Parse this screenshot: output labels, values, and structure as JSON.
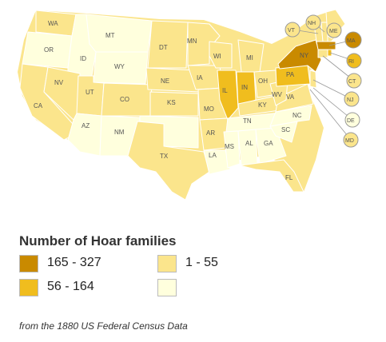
{
  "colors": {
    "top": "#c98a00",
    "high": "#f0bd1e",
    "mid": "#fbe58c",
    "low": "#ffffdd",
    "label": "#555555"
  },
  "map": {
    "state_labels": [
      "WA",
      "OR",
      "MT",
      "ID",
      "WY",
      "NV",
      "CA",
      "UT",
      "CO",
      "AZ",
      "NM",
      "DT",
      "NE",
      "KS",
      "TX",
      "MN",
      "IA",
      "MO",
      "AR",
      "LA",
      "WI",
      "MI",
      "IL",
      "IN",
      "OH",
      "KY",
      "TN",
      "MS",
      "AL",
      "GA",
      "FL",
      "SC",
      "NC",
      "VA",
      "WV",
      "PA",
      "NY",
      "VT",
      "NH",
      "ME",
      "MA",
      "RI",
      "CT",
      "NJ",
      "DE",
      "MD"
    ]
  },
  "legend": {
    "title": "Number of Hoar families",
    "items": [
      {
        "label": "165 - 327",
        "color": "#c98a00"
      },
      {
        "label": "56 - 164",
        "color": "#f0bd1e"
      },
      {
        "label": "1 - 55",
        "color": "#fbe58c"
      },
      {
        "label": "",
        "color": "#ffffdd"
      }
    ]
  },
  "source": "from the 1880 US Federal Census Data"
}
